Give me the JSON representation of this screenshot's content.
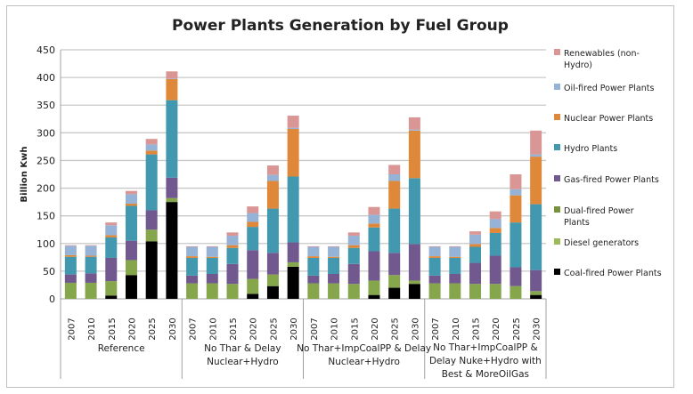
{
  "chart_data": {
    "type": "bar",
    "stacked": true,
    "title": "Power Plants Generation by Fuel Group",
    "xlabel": "",
    "ylabel": "Billion Kwh",
    "ylim": [
      0,
      450
    ],
    "yticks": [
      0,
      50,
      100,
      150,
      200,
      250,
      300,
      350,
      400,
      450
    ],
    "grid": true,
    "legend_position": "right",
    "groups": [
      {
        "name": "Reference",
        "lines": [
          "Reference"
        ]
      },
      {
        "name": "No Thar & Delay Nuclear+Hydro",
        "lines": [
          "No Thar & Delay",
          "Nuclear+Hydro"
        ]
      },
      {
        "name": "No Thar+ImpCoalPP & Delay Nuclear+Hydro",
        "lines": [
          "No Thar+ImpCoalPP & Delay",
          "Nuclear+Hydro"
        ]
      },
      {
        "name": "No Thar+ImpCoalPP & Delay Nuke+Hydro with Best & MoreOilGas",
        "lines": [
          "No Thar+ImpCoalPP &",
          "Delay Nuke+Hydro with",
          "Best & MoreOilGas"
        ]
      }
    ],
    "categories": [
      "2007",
      "2010",
      "2015",
      "2020",
      "2025",
      "2030"
    ],
    "series": [
      {
        "name": "Coal-fired Power Plants",
        "color": "#000000",
        "values": [
          [
            0,
            0,
            6,
            43,
            104,
            175
          ],
          [
            0,
            0,
            0,
            9,
            23,
            58
          ],
          [
            0,
            0,
            0,
            7,
            20,
            27
          ],
          [
            0,
            0,
            0,
            0,
            0,
            7
          ]
        ]
      },
      {
        "name": "Diesel generators",
        "color": "#9BBB59",
        "values": [
          [
            0,
            0,
            0,
            0,
            0,
            0
          ],
          [
            0,
            0,
            0,
            0,
            0,
            0
          ],
          [
            0,
            0,
            0,
            0,
            0,
            0
          ],
          [
            0,
            0,
            0,
            0,
            0,
            0
          ]
        ]
      },
      {
        "name": "Dual-fired Power Plants",
        "color": "#86A64C",
        "values": [
          [
            29,
            29,
            26,
            27,
            21,
            7
          ],
          [
            28,
            28,
            27,
            27,
            21,
            8
          ],
          [
            28,
            28,
            27,
            26,
            23,
            6
          ],
          [
            28,
            28,
            27,
            27,
            23,
            7
          ]
        ]
      },
      {
        "name": "Gas-fired Power Plants",
        "color": "#71588F",
        "values": [
          [
            15,
            17,
            42,
            35,
            35,
            37
          ],
          [
            14,
            17,
            36,
            52,
            39,
            36
          ],
          [
            14,
            17,
            36,
            53,
            40,
            66
          ],
          [
            14,
            17,
            38,
            51,
            34,
            38
          ]
        ]
      },
      {
        "name": "Hydro Plants",
        "color": "#4198AF",
        "values": [
          [
            32,
            30,
            37,
            63,
            101,
            140
          ],
          [
            32,
            29,
            29,
            42,
            80,
            119
          ],
          [
            32,
            29,
            29,
            43,
            80,
            119
          ],
          [
            32,
            29,
            29,
            41,
            81,
            119
          ]
        ]
      },
      {
        "name": "Nuclear Power Plants",
        "color": "#E0883A",
        "values": [
          [
            3,
            2,
            4,
            4,
            7,
            38
          ],
          [
            3,
            2,
            5,
            9,
            50,
            86
          ],
          [
            3,
            2,
            5,
            7,
            50,
            86
          ],
          [
            3,
            2,
            5,
            9,
            49,
            86
          ]
        ]
      },
      {
        "name": "Oil-fired Power Plants",
        "color": "#95B3D7",
        "values": [
          [
            17,
            18,
            18,
            17,
            11,
            1
          ],
          [
            17,
            18,
            17,
            16,
            11,
            2
          ],
          [
            17,
            18,
            17,
            16,
            12,
            2
          ],
          [
            17,
            18,
            17,
            16,
            11,
            4
          ]
        ]
      },
      {
        "name": "Renewables (non-Hydro)",
        "color": "#D99694",
        "values": [
          [
            1,
            1,
            5,
            6,
            10,
            13
          ],
          [
            1,
            1,
            6,
            12,
            17,
            22
          ],
          [
            1,
            1,
            6,
            14,
            17,
            22
          ],
          [
            1,
            1,
            6,
            14,
            27,
            43
          ]
        ]
      }
    ],
    "legend": [
      {
        "lines": [
          "Renewables (non-",
          "Hydro)"
        ],
        "color": "#D99694"
      },
      {
        "lines": [
          "Oil-fired Power Plants"
        ],
        "color": "#95B3D7"
      },
      {
        "lines": [
          "Nuclear Power Plants"
        ],
        "color": "#E0883A"
      },
      {
        "lines": [
          "Hydro Plants"
        ],
        "color": "#4198AF"
      },
      {
        "lines": [
          "Gas-fired Power Plants"
        ],
        "color": "#71588F"
      },
      {
        "lines": [
          "Dual-fired Power",
          "Plants"
        ],
        "color": "#77933C"
      },
      {
        "lines": [
          "Diesel generators"
        ],
        "color": "#9BBB59"
      },
      {
        "lines": [
          "Coal-fired Power Plants"
        ],
        "color": "#000000"
      }
    ]
  }
}
